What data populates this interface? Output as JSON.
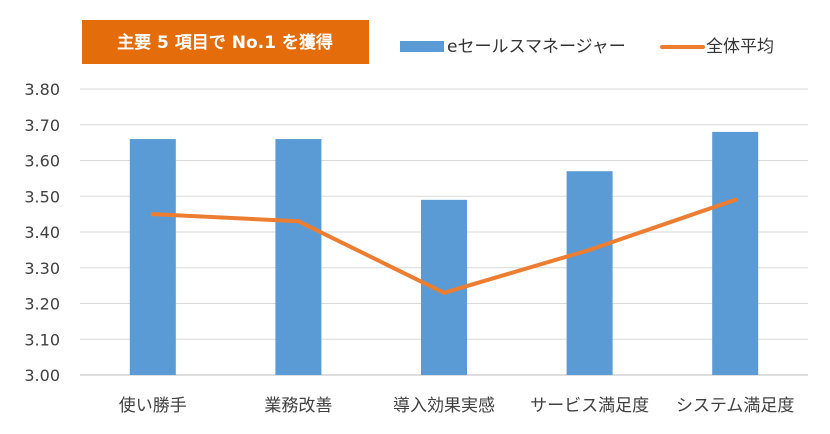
{
  "badge": {
    "text": "主要 5 項目で No.1 を獲得",
    "color": "#E46C0A",
    "text_color": "#ffffff"
  },
  "legend": {
    "position": "top-right",
    "items": [
      {
        "label": "eセールスマネージャー",
        "kind": "bar",
        "color": "#5B9BD5"
      },
      {
        "label": "全体平均",
        "kind": "line",
        "color": "#ED7D31"
      }
    ]
  },
  "chart_data": {
    "type": "bar",
    "categories": [
      "使い勝手",
      "業務改善",
      "導入効果実感",
      "サービス満足度",
      "システム満足度"
    ],
    "series": [
      {
        "name": "eセールスマネージャー",
        "type": "bar",
        "color": "#5B9BD5",
        "values": [
          3.66,
          3.66,
          3.49,
          3.57,
          3.68
        ]
      },
      {
        "name": "全体平均",
        "type": "line",
        "color": "#ED7D31",
        "values": [
          3.45,
          3.43,
          3.23,
          3.35,
          3.49
        ]
      }
    ],
    "ylim": [
      3.0,
      3.8
    ],
    "yticks": [
      "3.00",
      "3.10",
      "3.20",
      "3.30",
      "3.40",
      "3.50",
      "3.60",
      "3.70",
      "3.80"
    ],
    "grid": true,
    "title": "",
    "xlabel": "",
    "ylabel": ""
  }
}
